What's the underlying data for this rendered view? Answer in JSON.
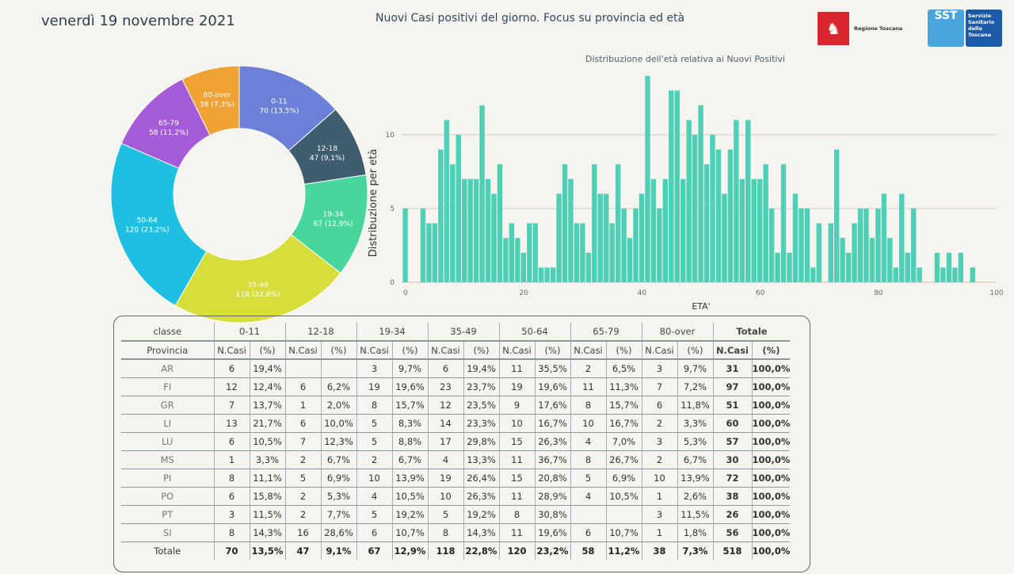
{
  "header": {
    "date": "venerdì 19 novembre 2021",
    "title": "Nuovi Casi positivi del giorno. Focus su provincia ed età",
    "logo_rt": "Regione Toscana",
    "logo_sst_a": "SST",
    "logo_sst_b": "Servizio Sanitario della Toscana"
  },
  "chart_data": [
    {
      "type": "pie",
      "variant": "donut",
      "title": "",
      "slices": [
        {
          "label": "0-11",
          "value": 70,
          "pct": "13,5%",
          "color": "#6b80d6"
        },
        {
          "label": "12-18",
          "value": 47,
          "pct": "9,1%",
          "color": "#3f5d6f"
        },
        {
          "label": "19-34",
          "value": 67,
          "pct": "12,9%",
          "color": "#48d69c"
        },
        {
          "label": "35-49",
          "value": 118,
          "pct": "22,8%",
          "color": "#d7dd3b"
        },
        {
          "label": "50-64",
          "value": 120,
          "pct": "23,2%",
          "color": "#1ec0e2"
        },
        {
          "label": "65-79",
          "value": 58,
          "pct": "11,2%",
          "color": "#a55bd8"
        },
        {
          "label": "80-over",
          "value": 38,
          "pct": "7,3%",
          "color": "#f0a233"
        }
      ]
    },
    {
      "type": "bar",
      "title": "Distribuzione dell'età relativa ai Nuovi Positivi",
      "xlabel": "ETA'",
      "ylabel": "Distribuzione per età",
      "xlim": [
        0,
        100
      ],
      "ylim": [
        0,
        14
      ],
      "xticks": [
        0,
        20,
        40,
        60,
        80,
        100
      ],
      "yticks": [
        0,
        5,
        10
      ],
      "color": "#4ecfb8",
      "x": [
        0,
        1,
        2,
        3,
        4,
        5,
        6,
        7,
        8,
        9,
        10,
        11,
        12,
        13,
        14,
        15,
        16,
        17,
        18,
        19,
        20,
        21,
        22,
        23,
        24,
        25,
        26,
        27,
        28,
        29,
        30,
        31,
        32,
        33,
        34,
        35,
        36,
        37,
        38,
        39,
        40,
        41,
        42,
        43,
        44,
        45,
        46,
        47,
        48,
        49,
        50,
        51,
        52,
        53,
        54,
        55,
        56,
        57,
        58,
        59,
        60,
        61,
        62,
        63,
        64,
        65,
        66,
        67,
        68,
        69,
        70,
        71,
        72,
        73,
        74,
        75,
        76,
        77,
        78,
        79,
        80,
        81,
        82,
        83,
        84,
        85,
        86,
        87,
        88,
        89,
        90,
        91,
        92,
        93,
        94,
        95,
        96
      ],
      "values": [
        5,
        0,
        0,
        5,
        4,
        4,
        9,
        11,
        8,
        10,
        7,
        7,
        7,
        12,
        7,
        6,
        8,
        3,
        4,
        3,
        2,
        4,
        4,
        1,
        1,
        1,
        6,
        8,
        7,
        4,
        4,
        2,
        8,
        6,
        6,
        4,
        8,
        5,
        3,
        5,
        6,
        14,
        7,
        5,
        7,
        13,
        13,
        7,
        11,
        10,
        12,
        8,
        10,
        9,
        6,
        9,
        11,
        7,
        11,
        7,
        7,
        8,
        5,
        2,
        8,
        2,
        6,
        5,
        5,
        1,
        4,
        0,
        4,
        9,
        3,
        2,
        4,
        5,
        5,
        3,
        5,
        6,
        3,
        1,
        6,
        2,
        5,
        1,
        0,
        0,
        2,
        1,
        2,
        1,
        2,
        0,
        1
      ]
    }
  ],
  "table": {
    "h_classe": "classe",
    "h_provincia": "Provincia",
    "groups": [
      "0-11",
      "12-18",
      "19-34",
      "35-49",
      "50-64",
      "65-79",
      "80-over",
      "Totale"
    ],
    "sub_n": "N.Casi",
    "sub_p": "(%)",
    "rows": [
      {
        "prov": "AR",
        "c": [
          "6",
          "19,4%",
          "",
          "",
          "3",
          "9,7%",
          "6",
          "19,4%",
          "11",
          "35,5%",
          "2",
          "6,5%",
          "3",
          "9,7%",
          "31",
          "100,0%"
        ]
      },
      {
        "prov": "FI",
        "c": [
          "12",
          "12,4%",
          "6",
          "6,2%",
          "19",
          "19,6%",
          "23",
          "23,7%",
          "19",
          "19,6%",
          "11",
          "11,3%",
          "7",
          "7,2%",
          "97",
          "100,0%"
        ]
      },
      {
        "prov": "GR",
        "c": [
          "7",
          "13,7%",
          "1",
          "2,0%",
          "8",
          "15,7%",
          "12",
          "23,5%",
          "9",
          "17,6%",
          "8",
          "15,7%",
          "6",
          "11,8%",
          "51",
          "100,0%"
        ]
      },
      {
        "prov": "LI",
        "c": [
          "13",
          "21,7%",
          "6",
          "10,0%",
          "5",
          "8,3%",
          "14",
          "23,3%",
          "10",
          "16,7%",
          "10",
          "16,7%",
          "2",
          "3,3%",
          "60",
          "100,0%"
        ]
      },
      {
        "prov": "LU",
        "c": [
          "6",
          "10,5%",
          "7",
          "12,3%",
          "5",
          "8,8%",
          "17",
          "29,8%",
          "15",
          "26,3%",
          "4",
          "7,0%",
          "3",
          "5,3%",
          "57",
          "100,0%"
        ]
      },
      {
        "prov": "MS",
        "c": [
          "1",
          "3,3%",
          "2",
          "6,7%",
          "2",
          "6,7%",
          "4",
          "13,3%",
          "11",
          "36,7%",
          "8",
          "26,7%",
          "2",
          "6,7%",
          "30",
          "100,0%"
        ]
      },
      {
        "prov": "PI",
        "c": [
          "8",
          "11,1%",
          "5",
          "6,9%",
          "10",
          "13,9%",
          "19",
          "26,4%",
          "15",
          "20,8%",
          "5",
          "6,9%",
          "10",
          "13,9%",
          "72",
          "100,0%"
        ]
      },
      {
        "prov": "PO",
        "c": [
          "6",
          "15,8%",
          "2",
          "5,3%",
          "4",
          "10,5%",
          "10",
          "26,3%",
          "11",
          "28,9%",
          "4",
          "10,5%",
          "1",
          "2,6%",
          "38",
          "100,0%"
        ]
      },
      {
        "prov": "PT",
        "c": [
          "3",
          "11,5%",
          "2",
          "7,7%",
          "5",
          "19,2%",
          "5",
          "19,2%",
          "8",
          "30,8%",
          "",
          "",
          "3",
          "11,5%",
          "26",
          "100,0%"
        ]
      },
      {
        "prov": "SI",
        "c": [
          "8",
          "14,3%",
          "16",
          "28,6%",
          "6",
          "10,7%",
          "8",
          "14,3%",
          "11",
          "19,6%",
          "6",
          "10,7%",
          "1",
          "1,8%",
          "56",
          "100,0%"
        ]
      }
    ],
    "total": {
      "prov": "Totale",
      "c": [
        "70",
        "13,5%",
        "47",
        "9,1%",
        "67",
        "12,9%",
        "118",
        "22,8%",
        "120",
        "23,2%",
        "58",
        "11,2%",
        "38",
        "7,3%",
        "518",
        "100,0%"
      ]
    }
  }
}
